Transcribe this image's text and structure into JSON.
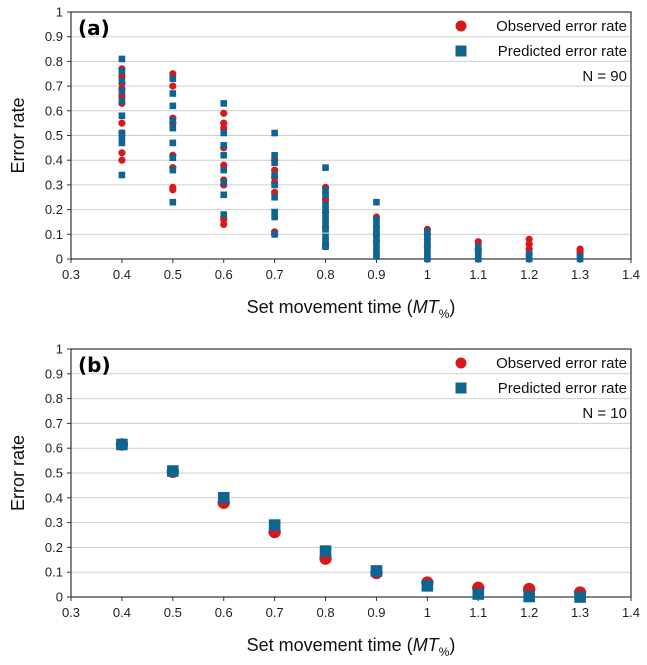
{
  "chart_data": [
    {
      "type": "scatter",
      "panel_label": "(a)",
      "annotation": "N = 90",
      "xlabel_prefix": "Set movement time (",
      "xlabel_italic": "MT",
      "xlabel_subscript": "%",
      "xlabel_suffix": ")",
      "ylabel": "Error rate",
      "xlim": [
        0.3,
        1.4
      ],
      "ylim": [
        0,
        1
      ],
      "xticks": [
        0.3,
        0.4,
        0.5,
        0.6,
        0.7,
        0.8,
        0.9,
        1,
        1.1,
        1.2,
        1.3,
        1.4
      ],
      "yticks": [
        0,
        0.1,
        0.2,
        0.3,
        0.4,
        0.5,
        0.6,
        0.7,
        0.8,
        0.9,
        1
      ],
      "grid": "horizontal",
      "legend_position": "top-right",
      "series": [
        {
          "name": "Observed error rate",
          "marker": "circle",
          "color": "#d7191c",
          "points": [
            [
              0.4,
              0.77
            ],
            [
              0.4,
              0.74
            ],
            [
              0.4,
              0.71
            ],
            [
              0.4,
              0.69
            ],
            [
              0.4,
              0.66
            ],
            [
              0.4,
              0.63
            ],
            [
              0.4,
              0.55
            ],
            [
              0.4,
              0.51
            ],
            [
              0.4,
              0.43
            ],
            [
              0.4,
              0.4
            ],
            [
              0.5,
              0.75
            ],
            [
              0.5,
              0.7
            ],
            [
              0.5,
              0.57
            ],
            [
              0.5,
              0.55
            ],
            [
              0.5,
              0.42
            ],
            [
              0.5,
              0.37
            ],
            [
              0.5,
              0.29
            ],
            [
              0.5,
              0.28
            ],
            [
              0.6,
              0.59
            ],
            [
              0.6,
              0.55
            ],
            [
              0.6,
              0.53
            ],
            [
              0.6,
              0.45
            ],
            [
              0.6,
              0.38
            ],
            [
              0.6,
              0.32
            ],
            [
              0.6,
              0.3
            ],
            [
              0.6,
              0.17
            ],
            [
              0.6,
              0.16
            ],
            [
              0.6,
              0.14
            ],
            [
              0.7,
              0.4
            ],
            [
              0.7,
              0.36
            ],
            [
              0.7,
              0.33
            ],
            [
              0.7,
              0.31
            ],
            [
              0.7,
              0.27
            ],
            [
              0.7,
              0.11
            ],
            [
              0.7,
              0.1
            ],
            [
              0.8,
              0.29
            ],
            [
              0.8,
              0.24
            ],
            [
              0.8,
              0.19
            ],
            [
              0.8,
              0.13
            ],
            [
              0.8,
              0.06
            ],
            [
              0.8,
              0.05
            ],
            [
              0.9,
              0.17
            ],
            [
              0.9,
              0.13
            ],
            [
              0.9,
              0.1
            ],
            [
              0.9,
              0.07
            ],
            [
              1,
              0.12
            ],
            [
              1,
              0.1
            ],
            [
              1,
              0.08
            ],
            [
              1,
              0.05
            ],
            [
              1.1,
              0.07
            ],
            [
              1.1,
              0.04
            ],
            [
              1.1,
              0.03
            ],
            [
              1.2,
              0.08
            ],
            [
              1.2,
              0.06
            ],
            [
              1.2,
              0.04
            ],
            [
              1.2,
              0.02
            ],
            [
              1.3,
              0.04
            ],
            [
              1.3,
              0.03
            ],
            [
              1.3,
              0.02
            ]
          ]
        },
        {
          "name": "Predicted error rate",
          "marker": "square",
          "color": "#0f6591",
          "points": [
            [
              0.4,
              0.81
            ],
            [
              0.4,
              0.76
            ],
            [
              0.4,
              0.72
            ],
            [
              0.4,
              0.68
            ],
            [
              0.4,
              0.64
            ],
            [
              0.4,
              0.58
            ],
            [
              0.4,
              0.51
            ],
            [
              0.4,
              0.49
            ],
            [
              0.4,
              0.47
            ],
            [
              0.4,
              0.34
            ],
            [
              0.5,
              0.73
            ],
            [
              0.5,
              0.67
            ],
            [
              0.5,
              0.62
            ],
            [
              0.5,
              0.56
            ],
            [
              0.5,
              0.53
            ],
            [
              0.5,
              0.47
            ],
            [
              0.5,
              0.41
            ],
            [
              0.5,
              0.36
            ],
            [
              0.5,
              0.23
            ],
            [
              0.6,
              0.63
            ],
            [
              0.6,
              0.51
            ],
            [
              0.6,
              0.46
            ],
            [
              0.6,
              0.42
            ],
            [
              0.6,
              0.36
            ],
            [
              0.6,
              0.31
            ],
            [
              0.6,
              0.26
            ],
            [
              0.6,
              0.18
            ],
            [
              0.7,
              0.51
            ],
            [
              0.7,
              0.42
            ],
            [
              0.7,
              0.39
            ],
            [
              0.7,
              0.34
            ],
            [
              0.7,
              0.3
            ],
            [
              0.7,
              0.25
            ],
            [
              0.7,
              0.19
            ],
            [
              0.7,
              0.17
            ],
            [
              0.7,
              0.1
            ],
            [
              0.8,
              0.37
            ],
            [
              0.8,
              0.28
            ],
            [
              0.8,
              0.26
            ],
            [
              0.8,
              0.22
            ],
            [
              0.8,
              0.2
            ],
            [
              0.8,
              0.18
            ],
            [
              0.8,
              0.16
            ],
            [
              0.8,
              0.14
            ],
            [
              0.8,
              0.12
            ],
            [
              0.8,
              0.09
            ],
            [
              0.8,
              0.07
            ],
            [
              0.8,
              0.05
            ],
            [
              0.9,
              0.23
            ],
            [
              0.9,
              0.16
            ],
            [
              0.9,
              0.14
            ],
            [
              0.9,
              0.12
            ],
            [
              0.9,
              0.1
            ],
            [
              0.9,
              0.08
            ],
            [
              0.9,
              0.06
            ],
            [
              0.9,
              0.04
            ],
            [
              0.9,
              0.02
            ],
            [
              0.9,
              0.01
            ],
            [
              1,
              0.11
            ],
            [
              1,
              0.09
            ],
            [
              1,
              0.07
            ],
            [
              1,
              0.05
            ],
            [
              1,
              0.03
            ],
            [
              1,
              0.01
            ],
            [
              1,
              0.0
            ],
            [
              1.1,
              0.05
            ],
            [
              1.1,
              0.03
            ],
            [
              1.1,
              0.01
            ],
            [
              1.1,
              0.0
            ],
            [
              1.2,
              0.02
            ],
            [
              1.2,
              0.01
            ],
            [
              1.2,
              0.0
            ],
            [
              1.3,
              0.01
            ],
            [
              1.3,
              0.0
            ]
          ]
        }
      ]
    },
    {
      "type": "scatter",
      "panel_label": "(b)",
      "annotation": "N = 10",
      "xlabel_prefix": "Set movement time (",
      "xlabel_italic": "MT",
      "xlabel_subscript": "%",
      "xlabel_suffix": ")",
      "ylabel": "Error rate",
      "xlim": [
        0.3,
        1.4
      ],
      "ylim": [
        0,
        1
      ],
      "xticks": [
        0.3,
        0.4,
        0.5,
        0.6,
        0.7,
        0.8,
        0.9,
        1,
        1.1,
        1.2,
        1.3,
        1.4
      ],
      "yticks": [
        0,
        0.1,
        0.2,
        0.3,
        0.4,
        0.5,
        0.6,
        0.7,
        0.8,
        0.9,
        1
      ],
      "grid": "horizontal",
      "legend_position": "top-right",
      "series": [
        {
          "name": "Observed error rate",
          "marker": "circle",
          "color": "#d7191c",
          "points": [
            [
              0.4,
              0.615
            ],
            [
              0.5,
              0.505
            ],
            [
              0.6,
              0.38
            ],
            [
              0.7,
              0.262
            ],
            [
              0.8,
              0.155
            ],
            [
              0.9,
              0.097
            ],
            [
              1,
              0.058
            ],
            [
              1.1,
              0.037
            ],
            [
              1.2,
              0.032
            ],
            [
              1.3,
              0.018
            ]
          ]
        },
        {
          "name": "Predicted error rate",
          "marker": "square",
          "color": "#0f6591",
          "points": [
            [
              0.4,
              0.615
            ],
            [
              0.5,
              0.508
            ],
            [
              0.6,
              0.4
            ],
            [
              0.7,
              0.29
            ],
            [
              0.8,
              0.185
            ],
            [
              0.9,
              0.105
            ],
            [
              1,
              0.045
            ],
            [
              1.1,
              0.012
            ],
            [
              1.2,
              0.002
            ],
            [
              1.3,
              0.0
            ]
          ]
        }
      ]
    }
  ]
}
